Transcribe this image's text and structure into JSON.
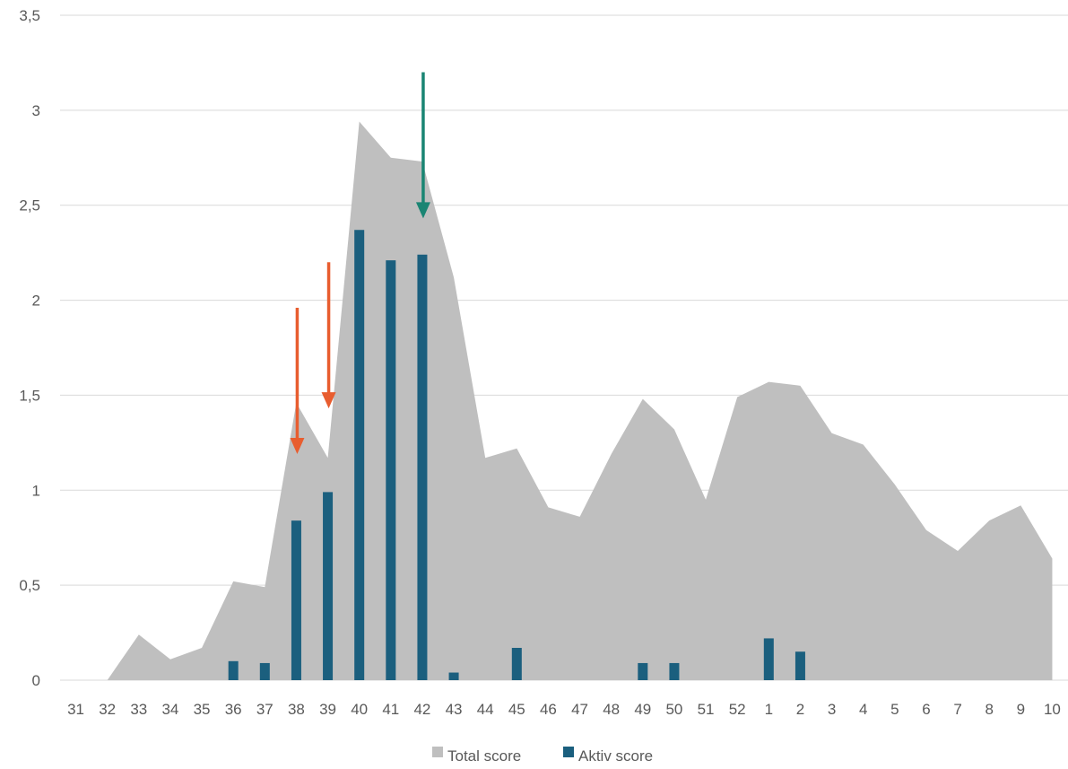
{
  "chart_data": {
    "type": "bar",
    "categories": [
      "31",
      "32",
      "33",
      "34",
      "35",
      "36",
      "37",
      "38",
      "39",
      "40",
      "41",
      "42",
      "43",
      "44",
      "45",
      "46",
      "47",
      "48",
      "49",
      "50",
      "51",
      "52",
      "1",
      "2",
      "3",
      "4",
      "5",
      "6",
      "7",
      "8",
      "9",
      "10"
    ],
    "ylim": [
      0,
      3.5
    ],
    "yticks": [
      "0",
      "0,5",
      "1",
      "1,5",
      "2",
      "2,5",
      "3",
      "3,5"
    ],
    "grid": true,
    "legend_position": "bottom",
    "series": [
      {
        "name": "Total score",
        "type": "area",
        "color": "#bfbfbf",
        "values": [
          null,
          0,
          0.24,
          0.11,
          0.17,
          0.52,
          0.49,
          1.46,
          1.17,
          2.94,
          2.75,
          2.73,
          2.12,
          1.17,
          1.22,
          0.91,
          0.86,
          1.19,
          1.48,
          1.32,
          0.95,
          1.49,
          1.57,
          1.55,
          1.3,
          1.24,
          1.03,
          0.79,
          0.68,
          0.84,
          0.92,
          0.64
        ]
      },
      {
        "name": "Aktiv score",
        "type": "bar",
        "color": "#1b5f7e",
        "values": [
          0,
          0,
          0,
          0,
          0,
          0.1,
          0.09,
          0.84,
          0.99,
          2.37,
          2.21,
          2.24,
          0.04,
          0,
          0.17,
          0,
          0,
          0,
          0.09,
          0.09,
          0,
          0,
          0.22,
          0.15,
          0,
          0,
          0,
          0,
          0,
          0,
          0,
          0
        ]
      }
    ],
    "annotations": [
      {
        "type": "arrow",
        "color": "#e85d2f",
        "category": "38",
        "from_y": 1.96,
        "to_y": 1.2
      },
      {
        "type": "arrow",
        "color": "#e85d2f",
        "category": "39",
        "from_y": 2.2,
        "to_y": 1.44
      },
      {
        "type": "arrow",
        "color": "#1a8573",
        "category": "42",
        "from_y": 3.2,
        "to_y": 2.44
      }
    ]
  }
}
